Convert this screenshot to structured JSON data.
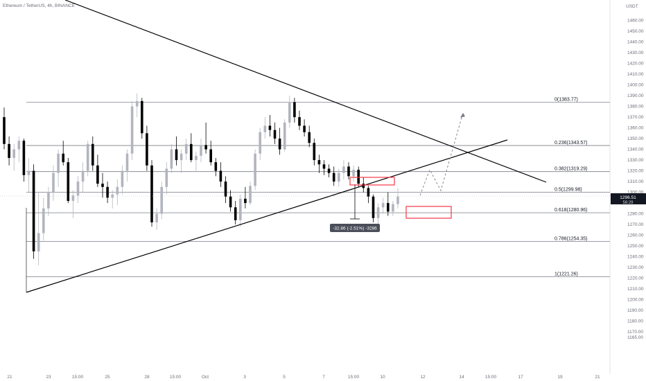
{
  "title": "Ethereum / TetherUS, 4h, BINANCE",
  "currency": "USDT",
  "price_label": {
    "price": "1296.51",
    "countdown": "58:29"
  },
  "measure_label": "-32.86 (-2.51%) -3286",
  "x_ticks": [
    "21",
    "23",
    "15:00",
    "25",
    "28",
    "15:00",
    "Oct",
    "3",
    "5",
    "7",
    "15:00",
    "10",
    "12",
    "14",
    "15:00",
    "17",
    "19",
    "21"
  ],
  "y_ticks": [
    "1460.00",
    "1450.00",
    "1440.00",
    "1430.00",
    "1420.00",
    "1410.00",
    "1400.00",
    "1390.00",
    "1380.00",
    "1370.00",
    "1360.00",
    "1350.00",
    "1340.00",
    "1330.00",
    "1320.00",
    "1310.00",
    "1300.00",
    "1290.00",
    "1280.00",
    "1270.00",
    "1260.00",
    "1250.00",
    "1240.00",
    "1230.00",
    "1220.00",
    "1210.00",
    "1200.00",
    "1190.00",
    "1180.00",
    "1170.00",
    "1165.00"
  ],
  "fib_levels": [
    {
      "label": "0(1383.77)",
      "price": 1383.77
    },
    {
      "label": "0.236(1343.57)",
      "price": 1343.57
    },
    {
      "label": "0.382(1319.29)",
      "price": 1319.29
    },
    {
      "label": "0.5(1299.98)",
      "price": 1299.98
    },
    {
      "label": "0.618(1280.96)",
      "price": 1280.96
    },
    {
      "label": "0.786(1254.35)",
      "price": 1254.35
    },
    {
      "label": "1(1221.26)",
      "price": 1221.26
    }
  ],
  "colors": {
    "up": "#b2b5be",
    "down": "#000000",
    "fib": "#787b86",
    "box": "#f23645",
    "trend": "#000000"
  },
  "chart_data": {
    "type": "candlestick",
    "title": "Ethereum / TetherUS, 4h, BINANCE",
    "ylim": [
      1162,
      1470
    ],
    "current_price": 1296.51,
    "candles": [
      [
        1370,
        1379,
        1340,
        1345
      ],
      [
        1345,
        1352,
        1325,
        1332
      ],
      [
        1332,
        1345,
        1320,
        1340
      ],
      [
        1340,
        1352,
        1328,
        1348
      ],
      [
        1348,
        1350,
        1310,
        1316
      ],
      [
        1316,
        1332,
        1300,
        1320
      ],
      [
        1320,
        1326,
        1238,
        1245
      ],
      [
        1245,
        1300,
        1232,
        1262
      ],
      [
        1262,
        1295,
        1255,
        1285
      ],
      [
        1285,
        1305,
        1278,
        1300
      ],
      [
        1300,
        1325,
        1292,
        1318
      ],
      [
        1318,
        1340,
        1305,
        1336
      ],
      [
        1336,
        1348,
        1325,
        1328
      ],
      [
        1328,
        1332,
        1290,
        1292
      ],
      [
        1292,
        1302,
        1276,
        1297
      ],
      [
        1297,
        1315,
        1290,
        1310
      ],
      [
        1310,
        1328,
        1300,
        1320
      ],
      [
        1320,
        1348,
        1315,
        1345
      ],
      [
        1345,
        1352,
        1320,
        1325
      ],
      [
        1325,
        1335,
        1305,
        1308
      ],
      [
        1308,
        1318,
        1295,
        1305
      ],
      [
        1305,
        1310,
        1290,
        1295
      ],
      [
        1295,
        1302,
        1285,
        1298
      ],
      [
        1298,
        1312,
        1288,
        1305
      ],
      [
        1305,
        1325,
        1298,
        1320
      ],
      [
        1320,
        1340,
        1310,
        1336
      ],
      [
        1336,
        1385,
        1330,
        1380
      ],
      [
        1380,
        1392,
        1370,
        1385
      ],
      [
        1385,
        1388,
        1350,
        1355
      ],
      [
        1355,
        1362,
        1320,
        1325
      ],
      [
        1325,
        1330,
        1268,
        1272
      ],
      [
        1272,
        1285,
        1265,
        1280
      ],
      [
        1280,
        1310,
        1275,
        1305
      ],
      [
        1305,
        1328,
        1298,
        1322
      ],
      [
        1322,
        1345,
        1318,
        1340
      ],
      [
        1340,
        1352,
        1325,
        1330
      ],
      [
        1330,
        1340,
        1318,
        1336
      ],
      [
        1336,
        1350,
        1330,
        1345
      ],
      [
        1345,
        1355,
        1328,
        1330
      ],
      [
        1330,
        1338,
        1320,
        1334
      ],
      [
        1334,
        1350,
        1328,
        1344
      ],
      [
        1344,
        1365,
        1336,
        1340
      ],
      [
        1340,
        1348,
        1325,
        1328
      ],
      [
        1328,
        1332,
        1315,
        1320
      ],
      [
        1320,
        1328,
        1305,
        1310
      ],
      [
        1310,
        1315,
        1290,
        1296
      ],
      [
        1296,
        1302,
        1282,
        1286
      ],
      [
        1286,
        1292,
        1270,
        1274
      ],
      [
        1274,
        1298,
        1268,
        1294
      ],
      [
        1294,
        1305,
        1285,
        1290
      ],
      [
        1290,
        1310,
        1288,
        1306
      ],
      [
        1306,
        1340,
        1302,
        1336
      ],
      [
        1336,
        1360,
        1330,
        1356
      ],
      [
        1356,
        1370,
        1350,
        1362
      ],
      [
        1362,
        1372,
        1352,
        1358
      ],
      [
        1358,
        1365,
        1345,
        1350
      ],
      [
        1350,
        1360,
        1335,
        1340
      ],
      [
        1340,
        1368,
        1338,
        1365
      ],
      [
        1365,
        1390,
        1360,
        1384
      ],
      [
        1384,
        1388,
        1365,
        1370
      ],
      [
        1370,
        1376,
        1358,
        1362
      ],
      [
        1362,
        1368,
        1352,
        1356
      ],
      [
        1356,
        1362,
        1342,
        1346
      ],
      [
        1346,
        1350,
        1325,
        1330
      ],
      [
        1330,
        1335,
        1318,
        1326
      ],
      [
        1326,
        1330,
        1316,
        1322
      ],
      [
        1322,
        1326,
        1314,
        1318
      ],
      [
        1318,
        1324,
        1306,
        1310
      ],
      [
        1310,
        1322,
        1305,
        1318
      ],
      [
        1318,
        1330,
        1312,
        1324
      ],
      [
        1324,
        1328,
        1312,
        1315
      ],
      [
        1315,
        1325,
        1310,
        1321
      ],
      [
        1321,
        1324,
        1305,
        1308
      ],
      [
        1308,
        1314,
        1300,
        1304
      ],
      [
        1304,
        1306,
        1290,
        1296
      ],
      [
        1296,
        1298,
        1272,
        1276
      ],
      [
        1276,
        1290,
        1270,
        1286
      ],
      [
        1286,
        1295,
        1280,
        1290
      ],
      [
        1290,
        1300,
        1278,
        1282
      ],
      [
        1282,
        1292,
        1278,
        1289
      ],
      [
        1289,
        1304,
        1285,
        1296
      ]
    ],
    "fib_levels": [
      1383.77,
      1343.57,
      1319.29,
      1299.98,
      1280.96,
      1254.35,
      1221.26
    ],
    "measure": {
      "change": -32.86,
      "percent": -2.51,
      "ticks": -3286
    }
  }
}
